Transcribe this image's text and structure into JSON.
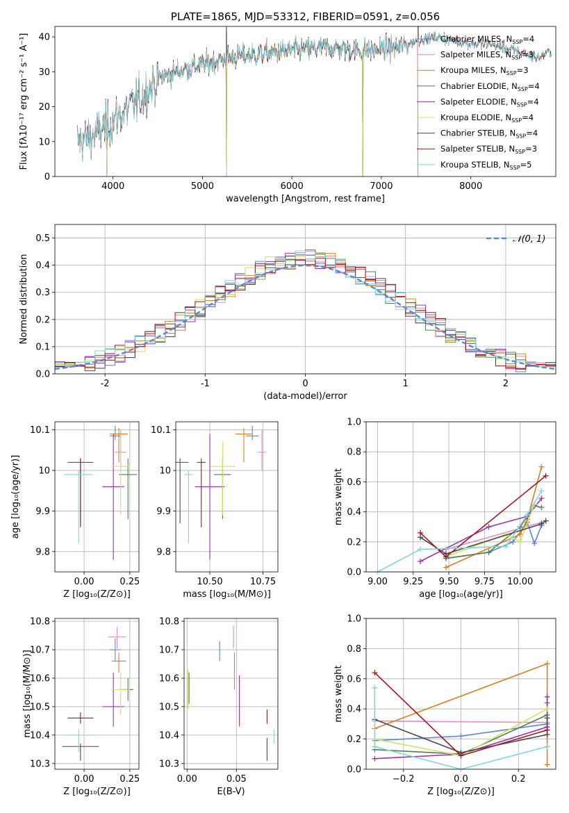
{
  "colors": {
    "Chabrier MILES": "#5b85d6",
    "Salpeter MILES": "#e88bc4",
    "Kroupa MILES": "#de7c22",
    "Chabrier ELODIE": "#4f7e52",
    "Salpeter ELODIE": "#9b2fb5",
    "Kroupa ELODIE": "#cfe35a",
    "Chabrier STELIB": "#4a4a4a",
    "Salpeter STELIB": "#a8161a",
    "Kroupa STELIB": "#7dd6dc",
    "normal": "#5b85d6",
    "grid": "#b0b0b0"
  },
  "chart_data": [
    {
      "type": "line",
      "title": "PLATE=1865, MJD=53312, FIBERID=0591, z=0.056",
      "xlabel": "wavelength [Angstrom, rest frame]",
      "ylabel": "Flux [fλ10⁻¹⁷ erg cm⁻² s⁻¹ A⁻¹]",
      "xlim": [
        3350,
        8950
      ],
      "ylim": [
        0,
        43
      ],
      "xticks": [
        4000,
        5000,
        6000,
        7000,
        8000
      ],
      "yticks": [
        0,
        10,
        20,
        30,
        40
      ],
      "grid": false,
      "legend_location": "upper-right",
      "legend": [
        {
          "name": "Chabrier MILES",
          "sub": "4"
        },
        {
          "name": "Salpeter MILES",
          "sub": "3"
        },
        {
          "name": "Kroupa MILES",
          "sub": "3"
        },
        {
          "name": "Chabrier ELODIE",
          "sub": "4"
        },
        {
          "name": "Salpeter ELODIE",
          "sub": "4"
        },
        {
          "name": "Kroupa ELODIE",
          "sub": "4"
        },
        {
          "name": "Chabrier STELIB",
          "sub": "4"
        },
        {
          "name": "Salpeter STELIB",
          "sub": "3"
        },
        {
          "name": "Kroupa STELIB",
          "sub": "5"
        }
      ],
      "continuum": [
        [
          3600,
          10
        ],
        [
          3800,
          12
        ],
        [
          4000,
          16
        ],
        [
          4100,
          18
        ],
        [
          4300,
          22
        ],
        [
          4500,
          28
        ],
        [
          4700,
          30
        ],
        [
          5000,
          32
        ],
        [
          5300,
          34
        ],
        [
          5600,
          35
        ],
        [
          6000,
          36
        ],
        [
          6400,
          37
        ],
        [
          6800,
          36
        ],
        [
          7200,
          37
        ],
        [
          7400,
          39
        ],
        [
          7600,
          40
        ],
        [
          7800,
          39
        ],
        [
          8000,
          38
        ],
        [
          8200,
          38
        ],
        [
          8500,
          36
        ],
        [
          8750,
          34
        ],
        [
          8900,
          36
        ]
      ],
      "model_spans": {
        "MILES": [
          3600,
          7410
        ],
        "ELODIE": [
          3900,
          6800
        ],
        "STELIB": [
          3600,
          8900
        ]
      },
      "dropouts": [
        3930,
        5270,
        6790,
        7410
      ],
      "spikes": [
        5270,
        7410
      ]
    },
    {
      "type": "step",
      "ylabel": "Normed distribution",
      "xlabel": "(data-model)/error",
      "xlim": [
        -2.5,
        2.5
      ],
      "ylim": [
        0,
        0.55
      ],
      "xticks": [
        -2,
        -1,
        0,
        1,
        2
      ],
      "yticks": [
        0.0,
        0.1,
        0.2,
        0.3,
        0.4,
        0.5
      ],
      "grid": true,
      "bin_width": 0.1,
      "reference_curve": {
        "name": "𝒩(0, 1)",
        "style": "dashed",
        "mean": 0,
        "sigma": 1
      },
      "legend_location": "upper-right"
    },
    {
      "type": "scatter",
      "xlabel": "Z [log₁₀(Z/Z⊙)]",
      "ylabel": "age  [log₁₀(age/yr)]",
      "xlim": [
        -0.16,
        0.3
      ],
      "ylim": [
        9.75,
        10.12
      ],
      "xticks": [
        0.0,
        0.25
      ],
      "xticklabels": [
        "0.00",
        "0.25"
      ],
      "yticks": [
        9.8,
        9.9,
        10.0,
        10.1
      ],
      "grid": true,
      "points": [
        {
          "model": "Chabrier MILES",
          "x": 0.17,
          "y": 10.085,
          "xerr": 0.03,
          "yerr": [
            0.01,
            0.025
          ]
        },
        {
          "model": "Salpeter MILES",
          "x": 0.2,
          "y": 10.045,
          "xerr": 0.03,
          "yerr": [
            0.045,
            0.055
          ]
        },
        {
          "model": "Kroupa MILES",
          "x": 0.19,
          "y": 10.09,
          "xerr": 0.05,
          "yerr": [
            0.07,
            0.015
          ]
        },
        {
          "model": "Chabrier ELODIE",
          "x": 0.24,
          "y": 9.99,
          "xerr": 0.05,
          "yerr": [
            0.11,
            0.04
          ]
        },
        {
          "model": "Salpeter ELODIE",
          "x": 0.16,
          "y": 9.96,
          "xerr": 0.06,
          "yerr": [
            0.18,
            0.13
          ]
        },
        {
          "model": "Kroupa ELODIE",
          "x": 0.2,
          "y": 10.01,
          "xerr": 0.05,
          "yerr": [
            0.12,
            0.08
          ]
        },
        {
          "model": "Chabrier STELIB",
          "x": -0.02,
          "y": 10.02,
          "xerr": 0.0,
          "yerr": [
            0.15,
            0.01
          ]
        },
        {
          "model": "Salpeter STELIB",
          "x": -0.02,
          "y": 10.02,
          "xerr": 0.07,
          "yerr": [
            0.16,
            0.01
          ]
        },
        {
          "model": "Kroupa STELIB",
          "x": -0.03,
          "y": 9.99,
          "xerr": 0.08,
          "yerr": [
            0.17,
            0.01
          ]
        }
      ]
    },
    {
      "type": "scatter",
      "xlabel": "mass [log₁₀(M/M⊙)]",
      "xlim": [
        10.34,
        10.82
      ],
      "ylim": [
        9.75,
        10.12
      ],
      "xticks": [
        10.5,
        10.75
      ],
      "xticklabels": [
        "10.50",
        "10.75"
      ],
      "yticks": [
        9.8,
        9.9,
        10.0,
        10.1
      ],
      "grid": true,
      "points": [
        {
          "model": "Chabrier MILES",
          "x": 10.7,
          "y": 10.085,
          "xerr": 0.03,
          "yerr": [
            0.01,
            0.025
          ]
        },
        {
          "model": "Salpeter MILES",
          "x": 10.745,
          "y": 10.045,
          "xerr": 0.02,
          "yerr": [
            0.045,
            0.055
          ]
        },
        {
          "model": "Kroupa MILES",
          "x": 10.66,
          "y": 10.09,
          "xerr": 0.04,
          "yerr": [
            0.07,
            0.015
          ]
        },
        {
          "model": "Chabrier ELODIE",
          "x": 10.56,
          "y": 9.99,
          "xerr": 0.04,
          "yerr": [
            0.11,
            0.04
          ]
        },
        {
          "model": "Salpeter ELODIE",
          "x": 10.5,
          "y": 9.96,
          "xerr": 0.07,
          "yerr": [
            0.18,
            0.13
          ]
        },
        {
          "model": "Kroupa ELODIE",
          "x": 10.56,
          "y": 10.01,
          "xerr": 0.06,
          "yerr": [
            0.12,
            0.06
          ]
        },
        {
          "model": "Chabrier STELIB",
          "x": 10.36,
          "y": 10.02,
          "xerr": 0.04,
          "yerr": [
            0.15,
            0.01
          ]
        },
        {
          "model": "Salpeter STELIB",
          "x": 10.46,
          "y": 10.02,
          "xerr": 0.02,
          "yerr": [
            0.16,
            0.01
          ]
        },
        {
          "model": "Kroupa STELIB",
          "x": 10.4,
          "y": 9.99,
          "xerr": 0.02,
          "yerr": [
            0.17,
            0.01
          ]
        }
      ]
    },
    {
      "type": "line",
      "xlabel": "age  [log₁₀(age/yr)]",
      "ylabel": "mass weight",
      "xlim": [
        8.92,
        10.25
      ],
      "ylim": [
        0,
        1
      ],
      "xticks": [
        9.0,
        9.25,
        9.5,
        9.75,
        10.0
      ],
      "xticklabels": [
        "9.00",
        "9.25",
        "9.50",
        "9.75",
        "10.00"
      ],
      "yticks": [
        0.0,
        0.2,
        0.4,
        0.6,
        0.8,
        1.0
      ],
      "grid": true,
      "series": [
        {
          "model": "Chabrier MILES",
          "x": [
            9.48,
            9.78,
            9.95,
            10.05,
            10.1,
            10.15
          ],
          "y": [
            0.09,
            0.13,
            0.2,
            0.33,
            0.19,
            0.31
          ]
        },
        {
          "model": "Salpeter MILES",
          "x": [
            9.48,
            10.15
          ],
          "y": [
            0.15,
            0.33
          ]
        },
        {
          "model": "Kroupa MILES",
          "x": [
            9.48,
            10.0,
            10.05,
            10.15
          ],
          "y": [
            0.03,
            0.25,
            0.35,
            0.7
          ]
        },
        {
          "model": "Chabrier ELODIE",
          "x": [
            9.48,
            9.78,
            10.0,
            10.1,
            10.15
          ],
          "y": [
            0.09,
            0.13,
            0.3,
            0.44,
            0.43
          ]
        },
        {
          "model": "Salpeter ELODIE",
          "x": [
            9.3,
            9.78,
            10.05,
            10.15
          ],
          "y": [
            0.07,
            0.3,
            0.37,
            0.49
          ]
        },
        {
          "model": "Kroupa ELODIE",
          "x": [
            9.48,
            9.9,
            10.0,
            10.1
          ],
          "y": [
            0.1,
            0.25,
            0.2,
            0.45
          ]
        },
        {
          "model": "Chabrier STELIB",
          "x": [
            9.3,
            9.48,
            10.15,
            10.18
          ],
          "y": [
            0.23,
            0.12,
            0.32,
            0.34
          ]
        },
        {
          "model": "Salpeter STELIB",
          "x": [
            9.3,
            9.48,
            10.18
          ],
          "y": [
            0.26,
            0.1,
            0.64
          ]
        },
        {
          "model": "Kroupa STELIB",
          "x": [
            9.0,
            9.3,
            9.9,
            10.05,
            10.15
          ],
          "y": [
            0.0,
            0.15,
            0.17,
            0.38,
            0.54
          ]
        }
      ]
    },
    {
      "type": "scatter",
      "xlabel": "Z [log₁₀(Z/Z⊙)]",
      "ylabel": "mass [log₁₀(M/M⊙)]",
      "xlim": [
        -0.16,
        0.3
      ],
      "ylim": [
        10.28,
        10.81
      ],
      "xticks": [
        0.0,
        0.25
      ],
      "xticklabels": [
        "0.00",
        "0.25"
      ],
      "yticks": [
        10.3,
        10.4,
        10.5,
        10.6,
        10.7,
        10.8
      ],
      "grid": true,
      "points": [
        {
          "model": "Chabrier MILES",
          "x": 0.17,
          "y": 10.7,
          "xerr": 0.03,
          "yerr": [
            0.04,
            0.04
          ]
        },
        {
          "model": "Salpeter MILES",
          "x": 0.18,
          "y": 10.745,
          "xerr": 0.05,
          "yerr": [
            0.04,
            0.035
          ]
        },
        {
          "model": "Kroupa MILES",
          "x": 0.19,
          "y": 10.66,
          "xerr": 0.04,
          "yerr": [
            0.04,
            0.03
          ]
        },
        {
          "model": "Chabrier ELODIE",
          "x": 0.24,
          "y": 10.56,
          "xerr": 0.03,
          "yerr": [
            0.04,
            0.04
          ]
        },
        {
          "model": "Salpeter ELODIE",
          "x": 0.16,
          "y": 10.5,
          "xerr": 0.06,
          "yerr": [
            0.07,
            0.12
          ]
        },
        {
          "model": "Kroupa ELODIE",
          "x": 0.2,
          "y": 10.56,
          "xerr": 0.05,
          "yerr": [
            0.09,
            0.06
          ]
        },
        {
          "model": "Chabrier STELIB",
          "x": -0.02,
          "y": 10.36,
          "xerr": 0.1,
          "yerr": [
            0.05,
            0.01
          ]
        },
        {
          "model": "Salpeter STELIB",
          "x": -0.02,
          "y": 10.46,
          "xerr": 0.07,
          "yerr": [
            0.02,
            0.02
          ]
        },
        {
          "model": "Kroupa STELIB",
          "x": -0.03,
          "y": 10.4,
          "xerr": 0.08,
          "yerr": [
            0.06,
            0.02
          ]
        }
      ]
    },
    {
      "type": "scatter",
      "xlabel": "E(B-V)",
      "xlim": [
        -0.003,
        0.092
      ],
      "ylim": [
        10.28,
        10.81
      ],
      "xticks": [
        0.0,
        0.05
      ],
      "xticklabels": [
        "0.00",
        "0.05"
      ],
      "yticks": [
        10.3,
        10.4,
        10.5,
        10.6,
        10.7,
        10.8
      ],
      "grid": true,
      "points": [
        {
          "model": "Chabrier MILES",
          "x": 0.033,
          "y": 10.7,
          "xerr": 0,
          "yerr": [
            0.04,
            0.03
          ]
        },
        {
          "model": "Salpeter MILES",
          "x": 0.047,
          "y": 10.745,
          "xerr": 0,
          "yerr": [
            0.04,
            0.04
          ]
        },
        {
          "model": "Kroupa MILES",
          "x": 0.048,
          "y": 10.66,
          "xerr": 0,
          "yerr": [
            0.1,
            0.03
          ]
        },
        {
          "model": "Chabrier ELODIE",
          "x": 0.002,
          "y": 10.56,
          "xerr": 0,
          "yerr": [
            0.05,
            0.06
          ]
        },
        {
          "model": "Salpeter ELODIE",
          "x": 0.053,
          "y": 10.5,
          "xerr": 0,
          "yerr": [
            0.07,
            0.11
          ]
        },
        {
          "model": "Kroupa ELODIE",
          "x": 0.001,
          "y": 10.56,
          "xerr": 0,
          "yerr": [
            0.07,
            0.07
          ]
        },
        {
          "model": "Chabrier STELIB",
          "x": 0.081,
          "y": 10.36,
          "xerr": 0,
          "yerr": [
            0.05,
            0.03
          ]
        },
        {
          "model": "Salpeter STELIB",
          "x": 0.081,
          "y": 10.46,
          "xerr": 0,
          "yerr": [
            0.02,
            0.03
          ]
        },
        {
          "model": "Kroupa STELIB",
          "x": 0.088,
          "y": 10.4,
          "xerr": 0,
          "yerr": [
            0.03,
            0.02
          ]
        }
      ]
    },
    {
      "type": "line",
      "xlabel": "Z [log₁₀(Z/Z⊙)]",
      "ylabel": "mass weight",
      "xlim": [
        -0.33,
        0.33
      ],
      "ylim": [
        0,
        1
      ],
      "xticks": [
        -0.2,
        0.0,
        0.2
      ],
      "xticklabels": [
        "−0.2",
        "0.0",
        "0.2"
      ],
      "yticks": [
        0.0,
        0.2,
        0.4,
        0.6,
        0.8,
        1.0
      ],
      "grid": true,
      "series": [
        {
          "model": "Chabrier MILES",
          "x": [
            -0.3,
            0.0,
            0.3
          ],
          "y": [
            0.19,
            0.22,
            0.3
          ]
        },
        {
          "model": "Salpeter MILES",
          "x": [
            -0.3,
            0.3
          ],
          "y": [
            0.32,
            0.31
          ]
        },
        {
          "model": "Kroupa MILES",
          "x": [
            -0.3,
            0.3,
            0.3
          ],
          "y": [
            0.27,
            0.7,
            0.03
          ]
        },
        {
          "model": "Chabrier ELODIE",
          "x": [
            -0.3,
            0.0,
            0.3,
            0.3
          ],
          "y": [
            0.13,
            0.1,
            0.36,
            0.44
          ]
        },
        {
          "model": "Salpeter ELODIE",
          "x": [
            -0.3,
            0.0,
            0.3,
            0.3
          ],
          "y": [
            0.07,
            0.1,
            0.28,
            0.48
          ]
        },
        {
          "model": "Kroupa ELODIE",
          "x": [
            -0.3,
            0.0,
            0.3
          ],
          "y": [
            0.2,
            0.09,
            0.4
          ]
        },
        {
          "model": "Chabrier STELIB",
          "x": [
            -0.3,
            0.0,
            0.3,
            0.3
          ],
          "y": [
            0.33,
            0.11,
            0.23,
            0.34
          ]
        },
        {
          "model": "Salpeter STELIB",
          "x": [
            -0.3,
            0.0,
            0.3
          ],
          "y": [
            0.64,
            0.09,
            0.26
          ]
        },
        {
          "model": "Kroupa STELIB",
          "x": [
            -0.3,
            -0.3,
            0.0,
            0.3
          ],
          "y": [
            0.54,
            0.15,
            0.0,
            0.15
          ]
        }
      ]
    }
  ]
}
